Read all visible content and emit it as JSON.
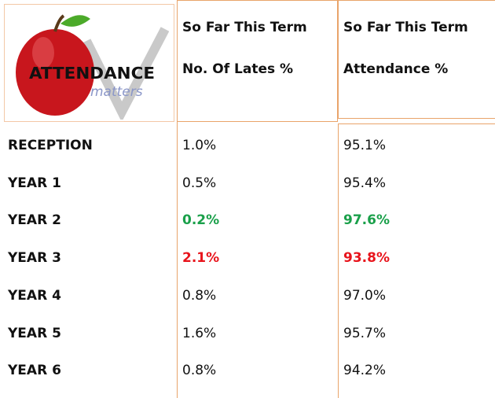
{
  "logo": {
    "title": "ATTENDANCE",
    "subtitle": "matters"
  },
  "table": {
    "headers": [
      [
        "So Far This Term",
        "No. Of Lates %"
      ],
      [
        "So Far This Term",
        "Attendance %"
      ]
    ],
    "rows": [
      {
        "label": "RECEPTION",
        "cells": [
          "1.0%",
          "95.1%"
        ]
      },
      {
        "label": "YEAR 1",
        "cells": [
          "0.5%",
          "95.4%"
        ]
      },
      {
        "label": "YEAR 2",
        "cells": [
          "0.2%",
          "97.6%"
        ],
        "color": "#1aa04a"
      },
      {
        "label": "YEAR 3",
        "cells": [
          "2.1%",
          "93.8%"
        ],
        "color": "#e8141c"
      },
      {
        "label": "YEAR 4",
        "cells": [
          "0.8%",
          "97.0%"
        ]
      },
      {
        "label": "YEAR 5",
        "cells": [
          "1.6%",
          "95.7%"
        ]
      },
      {
        "label": "YEAR 6",
        "cells": [
          "0.8%",
          "94.2%"
        ]
      }
    ]
  }
}
